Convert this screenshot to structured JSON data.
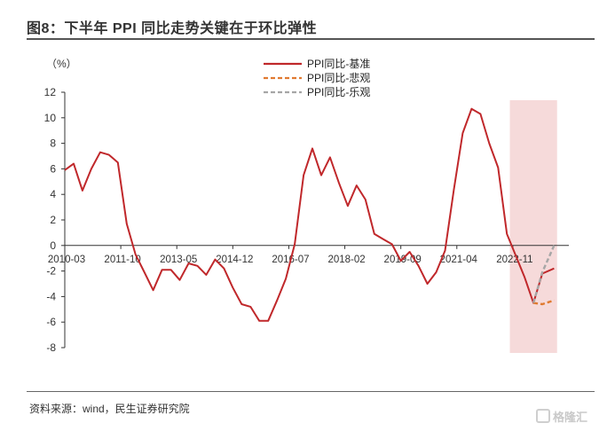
{
  "header": {
    "title": "图8：下半年 PPI 同比走势关键在于环比弹性"
  },
  "footer": {
    "source": "资料来源：wind，民生证券研究院",
    "watermark": "格隆汇"
  },
  "chart_data": {
    "type": "line",
    "unit_label": "（%）",
    "ylim": [
      -8,
      12
    ],
    "yticks": [
      12,
      10,
      8,
      6,
      4,
      2,
      0,
      -2,
      -4,
      -6,
      -8
    ],
    "x_tick_labels": [
      "2010-03",
      "2011-10",
      "2013-05",
      "2014-12",
      "2016-07",
      "2018-02",
      "2019-09",
      "2021-04",
      "2022-11"
    ],
    "x_tick_index": [
      0,
      19,
      38,
      57,
      76,
      95,
      114,
      133,
      152
    ],
    "x_total": 171,
    "grid": false,
    "legend_position": "top-center",
    "highlight_region": {
      "start_index": 151,
      "end_index": 167,
      "color": "#f6dada"
    },
    "series": [
      {
        "name": "PPI同比-基准",
        "color": "#c0282b",
        "style": "solid",
        "points": [
          [
            0,
            5.9
          ],
          [
            3,
            6.4
          ],
          [
            6,
            4.3
          ],
          [
            9,
            6.0
          ],
          [
            12,
            7.3
          ],
          [
            15,
            7.1
          ],
          [
            18,
            6.5
          ],
          [
            21,
            1.7
          ],
          [
            24,
            -0.7
          ],
          [
            27,
            -2.1
          ],
          [
            30,
            -3.5
          ],
          [
            33,
            -1.9
          ],
          [
            36,
            -1.9
          ],
          [
            39,
            -2.7
          ],
          [
            42,
            -1.4
          ],
          [
            45,
            -1.6
          ],
          [
            48,
            -2.3
          ],
          [
            51,
            -1.1
          ],
          [
            54,
            -1.8
          ],
          [
            57,
            -3.3
          ],
          [
            60,
            -4.6
          ],
          [
            63,
            -4.8
          ],
          [
            66,
            -5.9
          ],
          [
            69,
            -5.9
          ],
          [
            72,
            -4.3
          ],
          [
            75,
            -2.6
          ],
          [
            78,
            0.1
          ],
          [
            81,
            5.5
          ],
          [
            84,
            7.6
          ],
          [
            87,
            5.5
          ],
          [
            90,
            6.9
          ],
          [
            93,
            4.9
          ],
          [
            96,
            3.1
          ],
          [
            99,
            4.7
          ],
          [
            102,
            3.6
          ],
          [
            105,
            0.9
          ],
          [
            108,
            0.5
          ],
          [
            111,
            0.1
          ],
          [
            114,
            -1.2
          ],
          [
            117,
            -0.5
          ],
          [
            120,
            -1.6
          ],
          [
            123,
            -3.0
          ],
          [
            126,
            -2.1
          ],
          [
            129,
            -0.4
          ],
          [
            132,
            4.4
          ],
          [
            135,
            8.8
          ],
          [
            138,
            10.7
          ],
          [
            141,
            10.3
          ],
          [
            144,
            8.0
          ],
          [
            147,
            6.1
          ],
          [
            150,
            0.9
          ],
          [
            153,
            -0.8
          ],
          [
            156,
            -2.5
          ],
          [
            159,
            -4.5
          ],
          [
            162,
            -2.2
          ],
          [
            166,
            -1.8
          ]
        ]
      },
      {
        "name": "PPI同比-悲观",
        "color": "#e07a30",
        "style": "dashed",
        "points": [
          [
            159,
            -4.5
          ],
          [
            162,
            -4.6
          ],
          [
            166,
            -4.3
          ]
        ]
      },
      {
        "name": "PPI同比-乐观",
        "color": "#a6a6a6",
        "style": "dashed",
        "points": [
          [
            159,
            -4.5
          ],
          [
            162,
            -2.1
          ],
          [
            166,
            0.0
          ]
        ]
      }
    ]
  }
}
